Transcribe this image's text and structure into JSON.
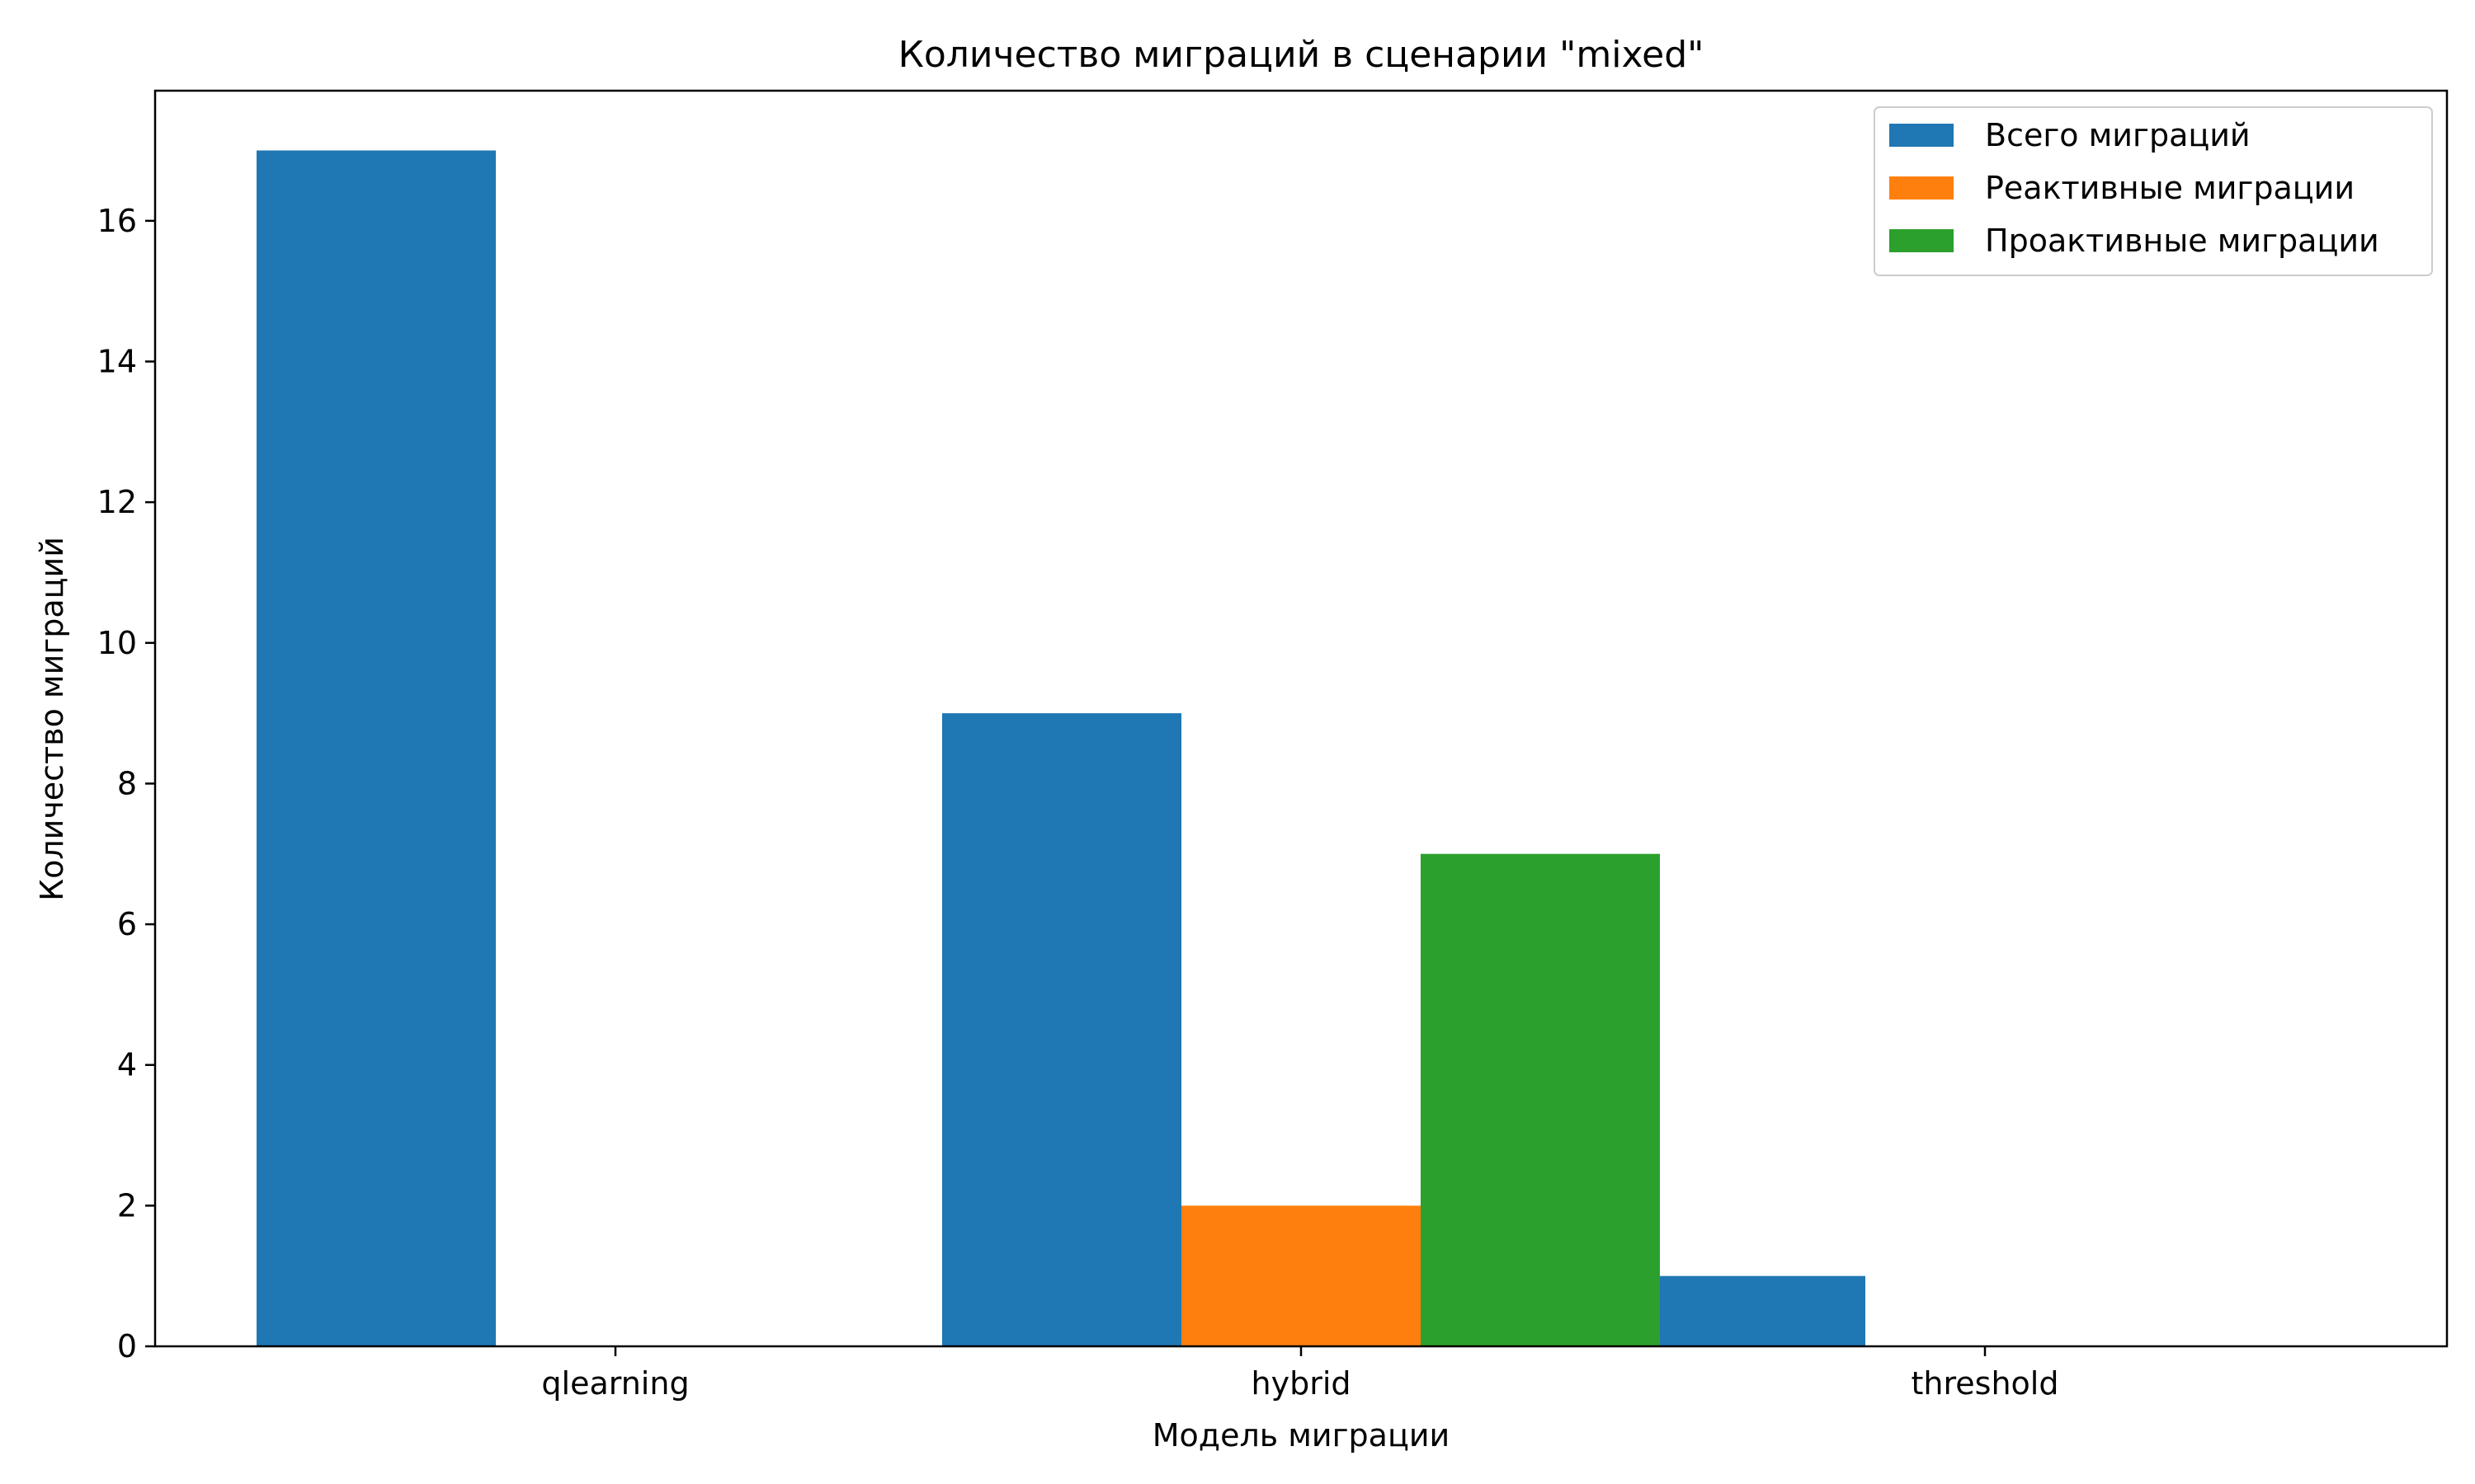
{
  "chart_data": {
    "type": "bar",
    "title": "Количество миграций в сценарии \"mixed\"",
    "xlabel": "Модель миграции",
    "ylabel": "Количество миграций",
    "categories": [
      "qlearning",
      "hybrid",
      "threshold"
    ],
    "series": [
      {
        "name": "Всего миграций",
        "color": "#1f77b4",
        "values": [
          17,
          9,
          1
        ]
      },
      {
        "name": "Реактивные миграции",
        "color": "#ff7f0e",
        "values": [
          0,
          2,
          0
        ]
      },
      {
        "name": "Проактивные миграции",
        "color": "#2ca02c",
        "values": [
          0,
          7,
          0
        ]
      }
    ],
    "ylim": [
      0,
      17.85
    ],
    "yticks": [
      "0",
      "2",
      "4",
      "6",
      "8",
      "10",
      "12",
      "14",
      "16"
    ],
    "grid": false,
    "legend_position": "top-right"
  }
}
